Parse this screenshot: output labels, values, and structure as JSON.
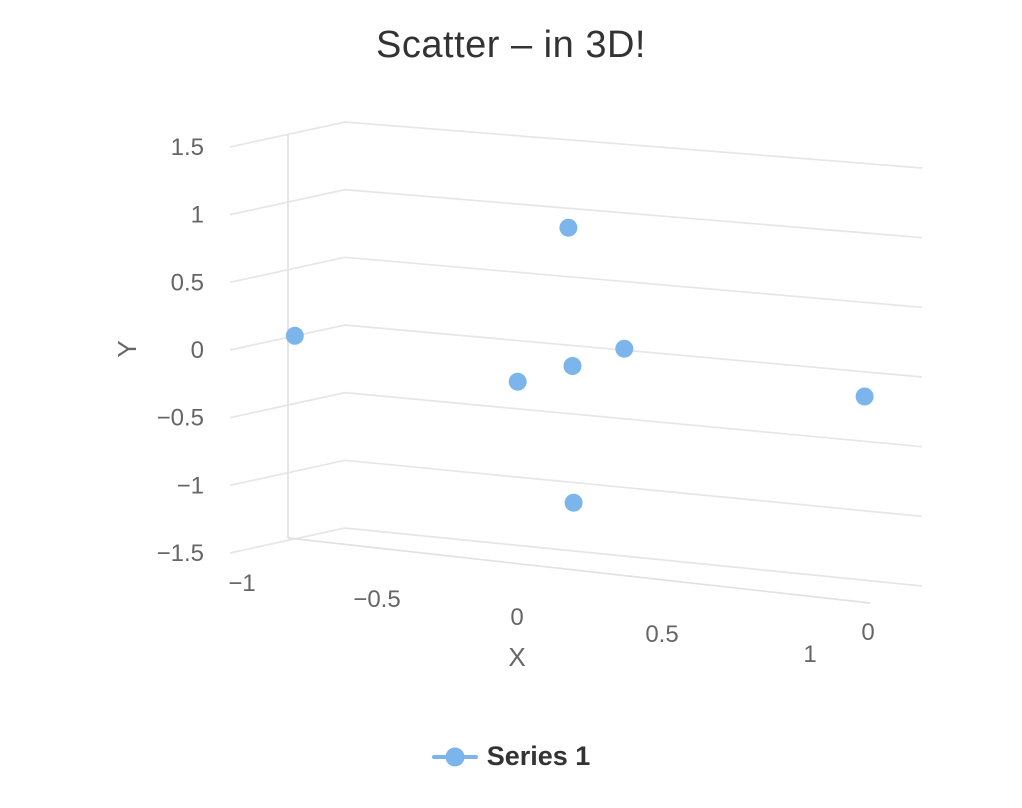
{
  "chart_data": {
    "type": "scatter",
    "projection": "3d",
    "title": "Scatter – in 3D!",
    "xlabel": "X",
    "ylabel": "Y",
    "x_ticks": [
      -1,
      -0.5,
      0,
      0.5,
      1
    ],
    "x_tick_labels": [
      "−1",
      "−0.5",
      "0",
      "0.5",
      "1"
    ],
    "y_ticks": [
      1.5,
      1,
      0.5,
      0,
      -0.5,
      -1,
      -1.5
    ],
    "y_tick_labels": [
      "1.5",
      "1",
      "0.5",
      "0",
      "−0.5",
      "−1",
      "−1.5"
    ],
    "z_ticks": [
      0
    ],
    "z_tick_labels": [
      "0"
    ],
    "xlim": [
      -1,
      1
    ],
    "ylim": [
      -1.5,
      1.5
    ],
    "grid_on": true,
    "legend_position": "bottom",
    "series": [
      {
        "name": "Series 1",
        "color": "#7cb5ec",
        "points": [
          {
            "x": -0.98,
            "y": 0.01,
            "z": 0
          },
          {
            "x": -0.03,
            "y": 1.03,
            "z": 0
          },
          {
            "x": -0.21,
            "y": -0.15,
            "z": 0
          },
          {
            "x": -0.02,
            "y": 0.01,
            "z": 0
          },
          {
            "x": 0.16,
            "y": 0.18,
            "z": 0
          },
          {
            "x": 0.99,
            "y": 0.02,
            "z": 0
          },
          {
            "x": -0.02,
            "y": -1.0,
            "z": 0
          }
        ]
      }
    ],
    "colors": {
      "grid": "#e6e6e6",
      "zero_plane_line": "#e2e2e2",
      "tick_label": "#666666",
      "axis_title": "#666666",
      "title": "#333333",
      "legend_text": "#333333",
      "background": "#ffffff"
    }
  }
}
